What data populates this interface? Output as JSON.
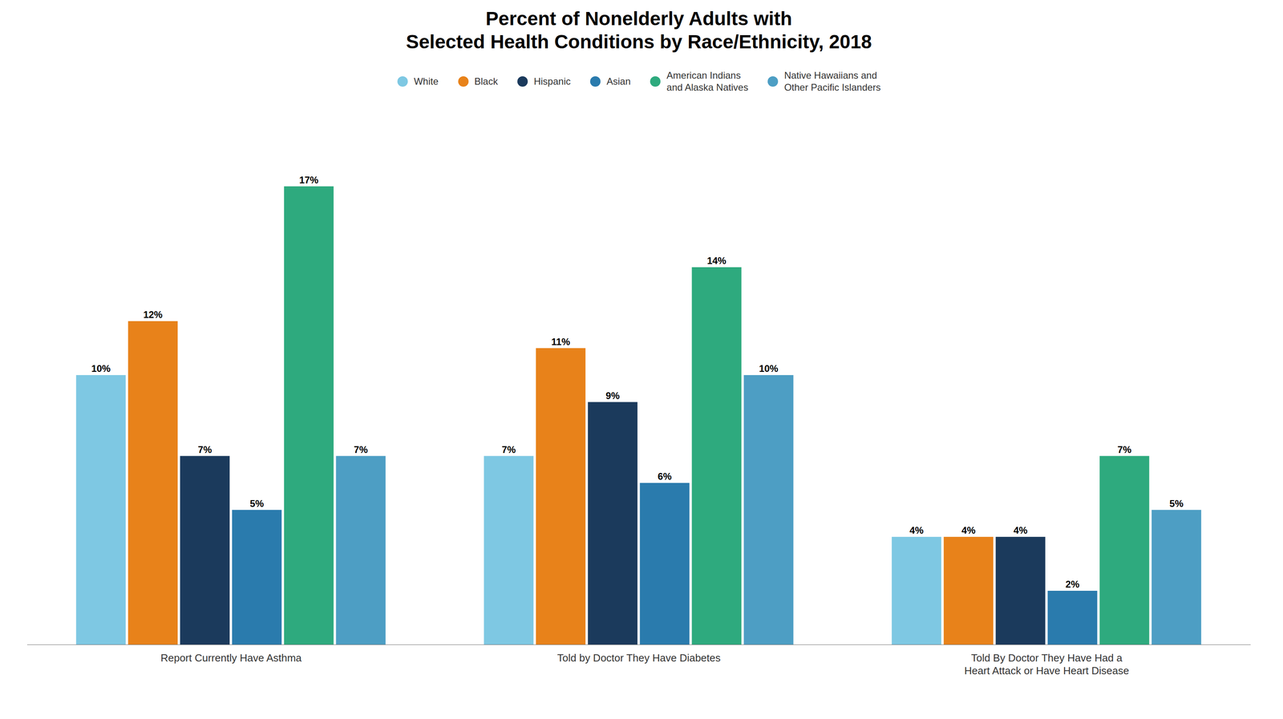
{
  "chart_data": {
    "type": "bar",
    "title": "Percent of Nonelderly Adults with\nSelected Health Conditions by Race/Ethnicity, 2018",
    "categories": [
      "Report Currently Have Asthma",
      "Told by Doctor They Have Diabetes",
      "Told By Doctor They Have Had a\nHeart Attack or Have Heart Disease"
    ],
    "series": [
      {
        "name": "White",
        "color": "#7EC8E3",
        "values": [
          10,
          7,
          4
        ],
        "value_labels": [
          "10%",
          "7%",
          "4%"
        ]
      },
      {
        "name": "Black",
        "color": "#E8821A",
        "values": [
          12,
          11,
          4
        ],
        "value_labels": [
          "12%",
          "11%",
          "4%"
        ]
      },
      {
        "name": "Hispanic",
        "color": "#1B3A5C",
        "values": [
          7,
          9,
          4
        ],
        "value_labels": [
          "7%",
          "9%",
          "4%"
        ]
      },
      {
        "name": "Asian",
        "color": "#2A7BAD",
        "values": [
          5,
          6,
          2
        ],
        "value_labels": [
          "5%",
          "6%",
          "2%"
        ]
      },
      {
        "name": "American Indians\nand Alaska Natives",
        "color": "#2EAA7E",
        "values": [
          17,
          14,
          7
        ],
        "value_labels": [
          "17%",
          "14%",
          "7%"
        ]
      },
      {
        "name": "Native Hawaiians and\nOther Pacific Islanders",
        "color": "#4D9EC4",
        "values": [
          7,
          10,
          5
        ],
        "value_labels": [
          "7%",
          "10%",
          "5%"
        ]
      }
    ],
    "ylim": [
      0,
      20
    ],
    "grid": false,
    "legend": "top",
    "data_labels": true,
    "tick_labels": "x"
  }
}
